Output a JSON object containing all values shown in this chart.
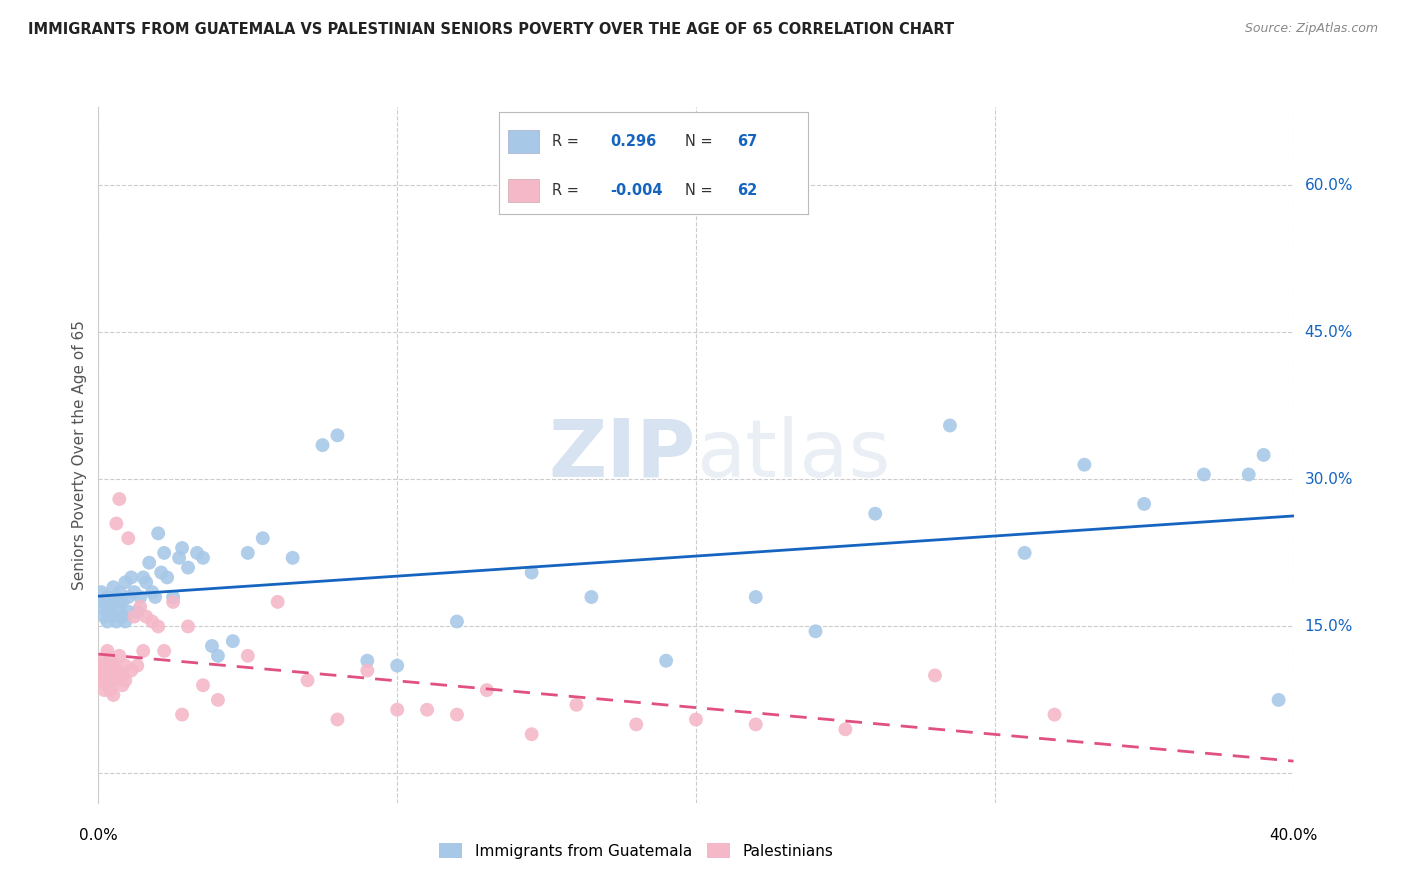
{
  "title": "IMMIGRANTS FROM GUATEMALA VS PALESTINIAN SENIORS POVERTY OVER THE AGE OF 65 CORRELATION CHART",
  "source": "Source: ZipAtlas.com",
  "ylabel": "Seniors Poverty Over the Age of 65",
  "xlim": [
    0.0,
    0.4
  ],
  "ylim": [
    -0.03,
    0.68
  ],
  "yticks": [
    0.0,
    0.15,
    0.3,
    0.45,
    0.6
  ],
  "ytick_labels": [
    "",
    "15.0%",
    "30.0%",
    "45.0%",
    "60.0%"
  ],
  "xticks": [
    0.0,
    0.1,
    0.2,
    0.3,
    0.4
  ],
  "xtick_labels": [
    "0.0%",
    "",
    "",
    "",
    "40.0%"
  ],
  "series1_label": "Immigrants from Guatemala",
  "series1_R": "0.296",
  "series1_N": "67",
  "series1_color": "#a8c8e8",
  "series1_line_color": "#1565C0",
  "series2_label": "Palestinians",
  "series2_R": "-0.004",
  "series2_N": "62",
  "series2_color": "#f4b8c8",
  "series2_line_color": "#e05080",
  "watermark": "ZIPatlas",
  "background_color": "#ffffff",
  "grid_color": "#cccccc",
  "series1_x": [
    0.001,
    0.001,
    0.002,
    0.002,
    0.003,
    0.003,
    0.003,
    0.004,
    0.004,
    0.005,
    0.005,
    0.005,
    0.006,
    0.006,
    0.007,
    0.007,
    0.007,
    0.008,
    0.008,
    0.009,
    0.009,
    0.01,
    0.01,
    0.011,
    0.012,
    0.013,
    0.014,
    0.015,
    0.016,
    0.017,
    0.018,
    0.019,
    0.02,
    0.021,
    0.022,
    0.023,
    0.025,
    0.027,
    0.028,
    0.03,
    0.033,
    0.035,
    0.038,
    0.04,
    0.045,
    0.05,
    0.055,
    0.065,
    0.075,
    0.08,
    0.09,
    0.1,
    0.12,
    0.145,
    0.165,
    0.19,
    0.22,
    0.24,
    0.26,
    0.285,
    0.31,
    0.33,
    0.35,
    0.37,
    0.385,
    0.39,
    0.395
  ],
  "series1_y": [
    0.17,
    0.185,
    0.16,
    0.175,
    0.155,
    0.165,
    0.18,
    0.165,
    0.17,
    0.16,
    0.175,
    0.19,
    0.155,
    0.18,
    0.165,
    0.175,
    0.185,
    0.16,
    0.175,
    0.155,
    0.195,
    0.165,
    0.18,
    0.2,
    0.185,
    0.165,
    0.18,
    0.2,
    0.195,
    0.215,
    0.185,
    0.18,
    0.245,
    0.205,
    0.225,
    0.2,
    0.18,
    0.22,
    0.23,
    0.21,
    0.225,
    0.22,
    0.13,
    0.12,
    0.135,
    0.225,
    0.24,
    0.22,
    0.335,
    0.345,
    0.115,
    0.11,
    0.155,
    0.205,
    0.18,
    0.115,
    0.18,
    0.145,
    0.265,
    0.355,
    0.225,
    0.315,
    0.275,
    0.305,
    0.305,
    0.325,
    0.075
  ],
  "series2_x": [
    0.001,
    0.001,
    0.001,
    0.001,
    0.001,
    0.002,
    0.002,
    0.002,
    0.002,
    0.002,
    0.003,
    0.003,
    0.003,
    0.003,
    0.004,
    0.004,
    0.004,
    0.004,
    0.005,
    0.005,
    0.005,
    0.005,
    0.006,
    0.006,
    0.007,
    0.007,
    0.008,
    0.008,
    0.009,
    0.009,
    0.01,
    0.011,
    0.012,
    0.013,
    0.014,
    0.015,
    0.016,
    0.018,
    0.02,
    0.022,
    0.025,
    0.028,
    0.03,
    0.035,
    0.04,
    0.05,
    0.06,
    0.07,
    0.08,
    0.09,
    0.1,
    0.11,
    0.12,
    0.13,
    0.145,
    0.16,
    0.18,
    0.2,
    0.22,
    0.25,
    0.28,
    0.32
  ],
  "series2_y": [
    0.1,
    0.105,
    0.11,
    0.095,
    0.115,
    0.1,
    0.11,
    0.095,
    0.085,
    0.105,
    0.125,
    0.11,
    0.09,
    0.1,
    0.105,
    0.115,
    0.095,
    0.085,
    0.1,
    0.11,
    0.095,
    0.08,
    0.255,
    0.105,
    0.28,
    0.12,
    0.1,
    0.09,
    0.11,
    0.095,
    0.24,
    0.105,
    0.16,
    0.11,
    0.17,
    0.125,
    0.16,
    0.155,
    0.15,
    0.125,
    0.175,
    0.06,
    0.15,
    0.09,
    0.075,
    0.12,
    0.175,
    0.095,
    0.055,
    0.105,
    0.065,
    0.065,
    0.06,
    0.085,
    0.04,
    0.07,
    0.05,
    0.055,
    0.05,
    0.045,
    0.1,
    0.06
  ]
}
